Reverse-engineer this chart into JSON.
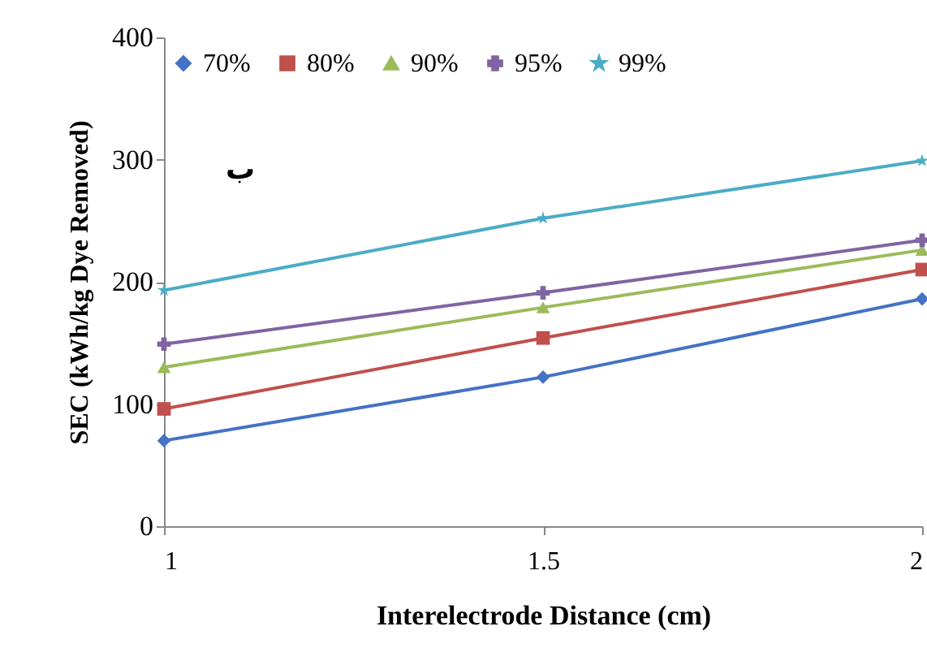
{
  "chart_data": {
    "type": "line",
    "xlabel": "Interelectrode Distance (cm)",
    "ylabel": "SEC (kWh/kg  Dye Removed)",
    "x": [
      1,
      1.5,
      2
    ],
    "xlim": [
      1,
      2
    ],
    "xticks": [
      1,
      1.5,
      2
    ],
    "ylim": [
      0,
      400
    ],
    "yticks": [
      0,
      100,
      200,
      300,
      400
    ],
    "legend": "top",
    "annotations": [
      "ب"
    ],
    "series": [
      {
        "name": "70%",
        "color": "#4472c4",
        "marker": "diamond",
        "values": [
          70,
          122,
          186
        ]
      },
      {
        "name": "80%",
        "color": "#c0504d",
        "marker": "square",
        "values": [
          96,
          154,
          210
        ]
      },
      {
        "name": "90%",
        "color": "#9bbb59",
        "marker": "triangle",
        "values": [
          130,
          179,
          226
        ]
      },
      {
        "name": "95%",
        "color": "#8064a2",
        "marker": "cross",
        "values": [
          149,
          191,
          234
        ]
      },
      {
        "name": "99%",
        "color": "#4bacc6",
        "marker": "star",
        "values": [
          193,
          252,
          299
        ]
      }
    ]
  }
}
